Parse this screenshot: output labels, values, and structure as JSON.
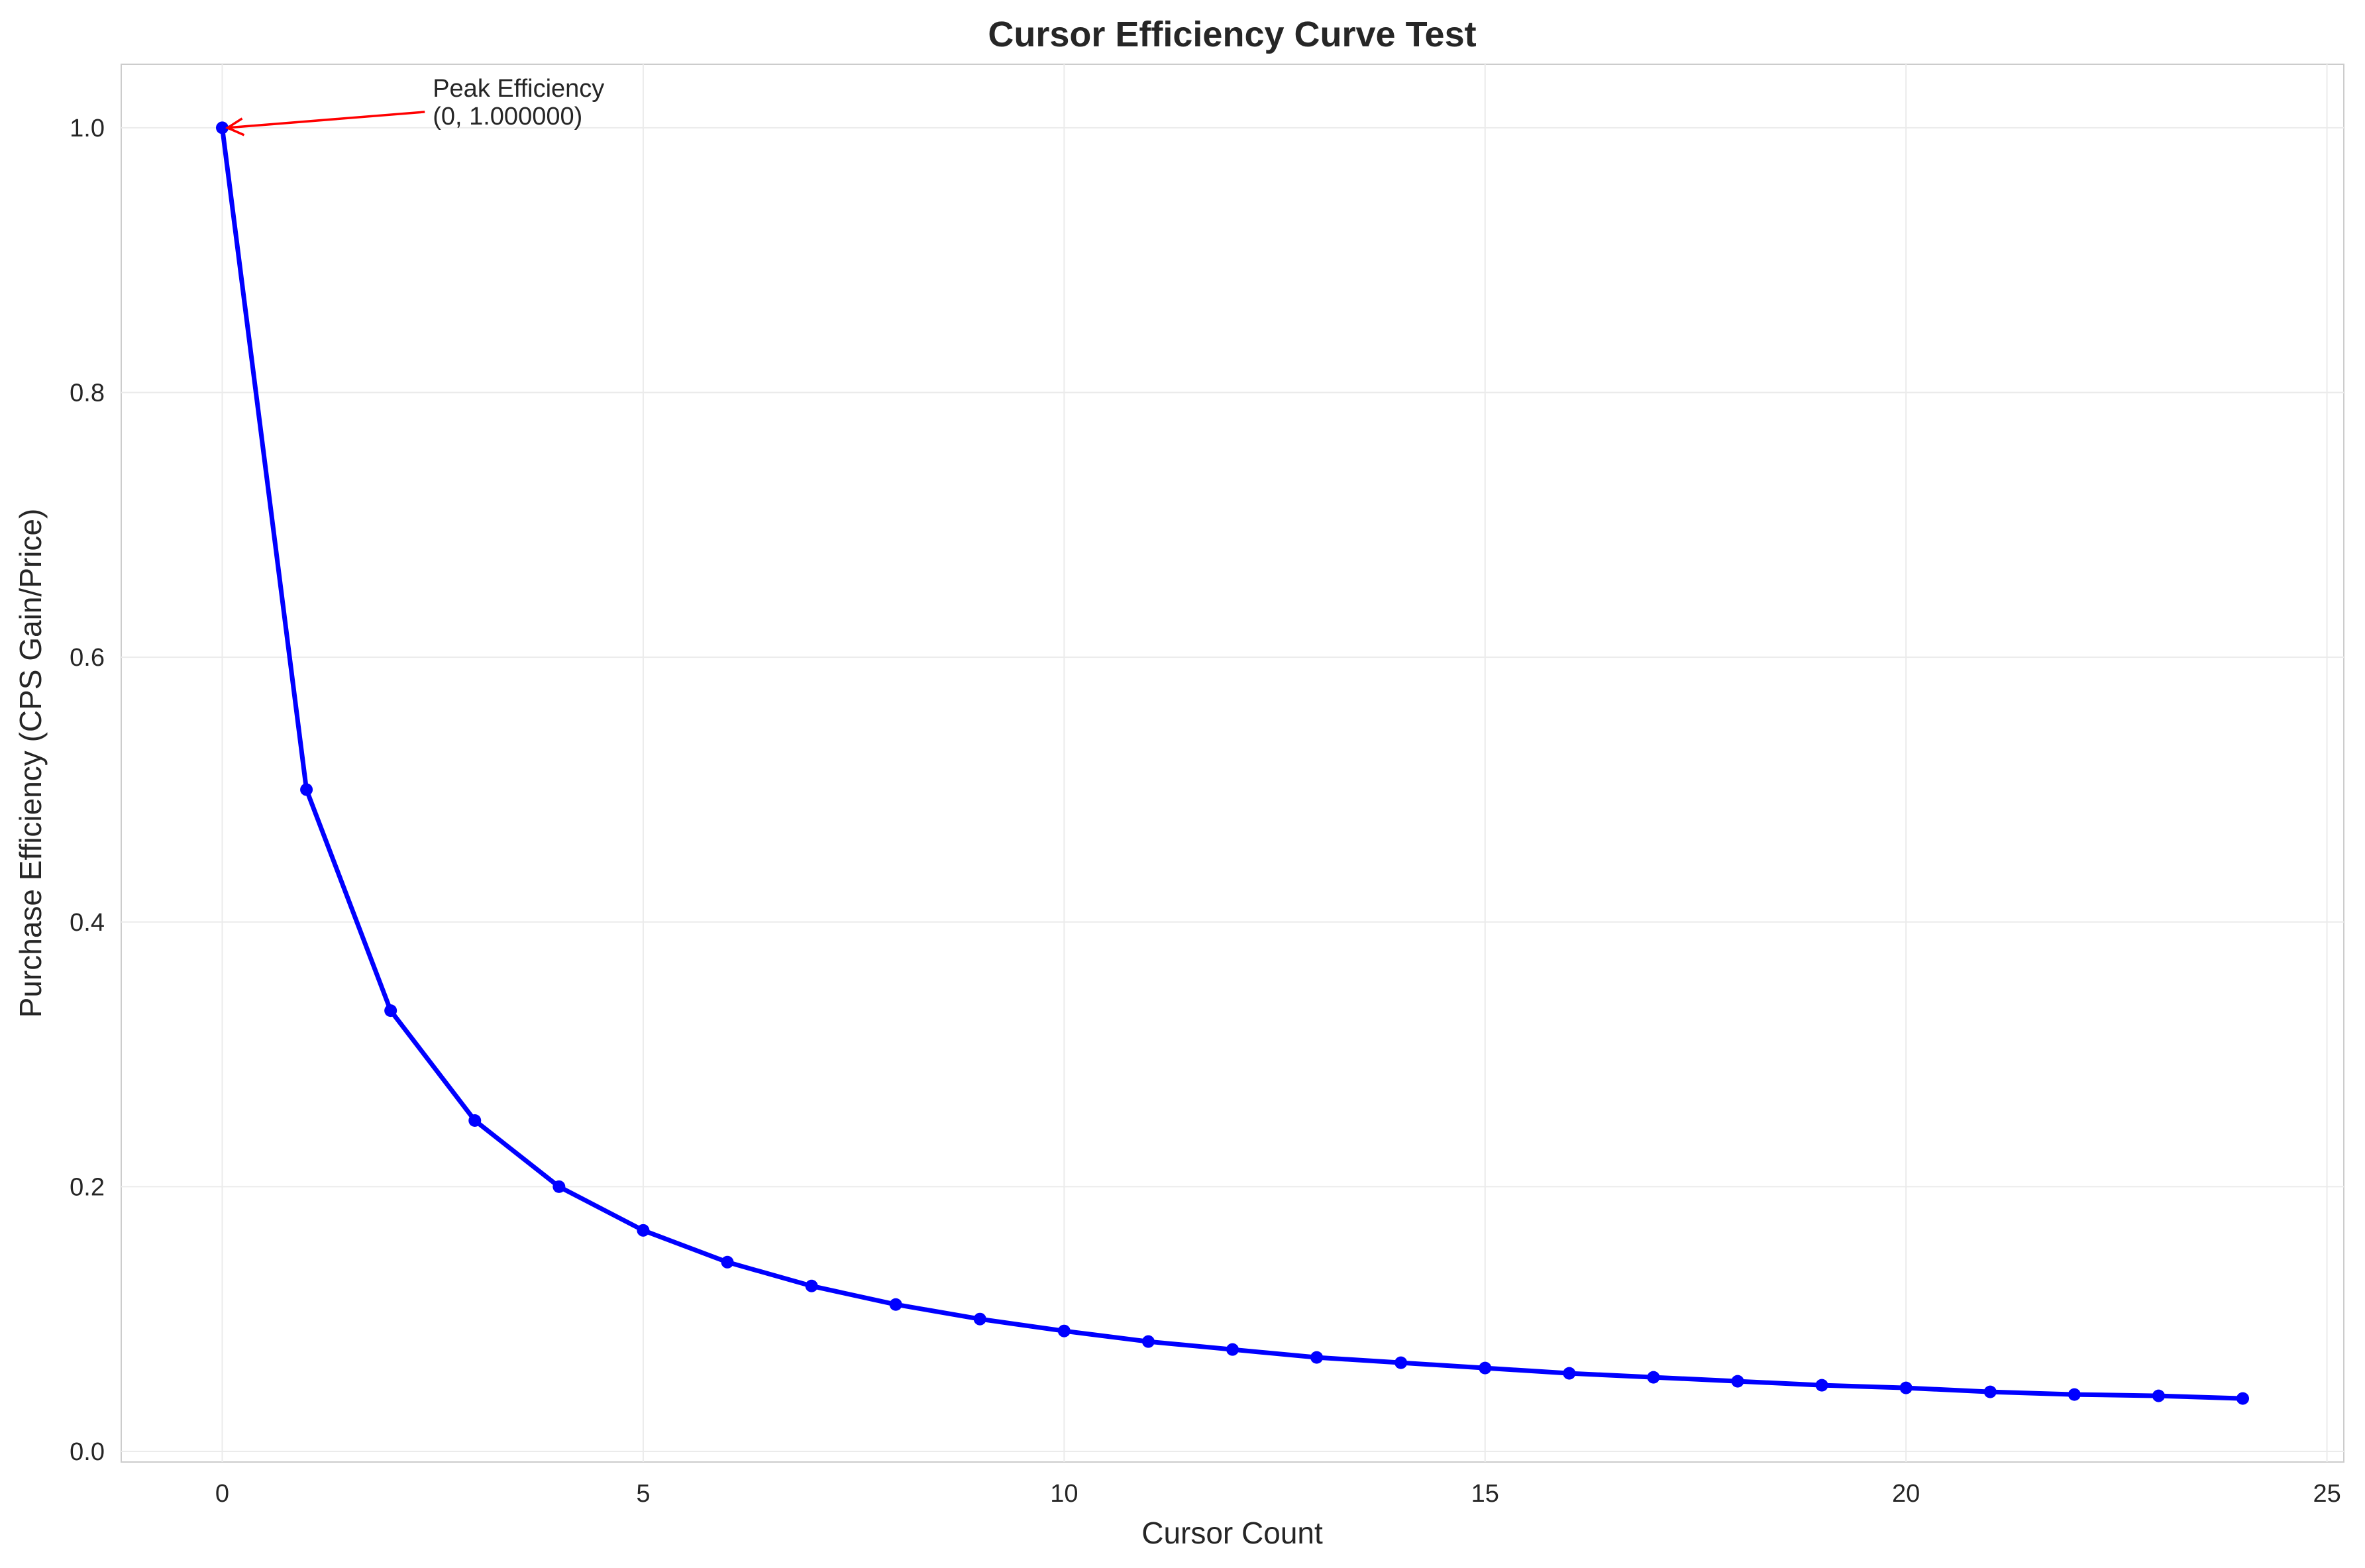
{
  "chart_data": {
    "type": "line",
    "title": "Cursor Efficiency Curve Test",
    "xlabel": "Cursor Count",
    "ylabel": "Purchase Efficiency (CPS Gain/Price)",
    "xlim": [
      -1.2,
      25.2
    ],
    "ylim": [
      -0.008,
      1.048
    ],
    "xticks": [
      0,
      5,
      10,
      15,
      20,
      25
    ],
    "yticks": [
      0.0,
      0.2,
      0.4,
      0.6,
      0.8,
      1.0
    ],
    "xtick_labels": [
      "0",
      "5",
      "10",
      "15",
      "20",
      "25"
    ],
    "ytick_labels": [
      "0.0",
      "0.2",
      "0.4",
      "0.6",
      "0.8",
      "1.0"
    ],
    "grid": true,
    "legend": "none",
    "series": [
      {
        "color": "#0000ff",
        "marker": "circle",
        "x": [
          0,
          1,
          2,
          3,
          4,
          5,
          6,
          7,
          8,
          9,
          10,
          11,
          12,
          13,
          14,
          15,
          16,
          17,
          18,
          19,
          20,
          21,
          22,
          23,
          24
        ],
        "y": [
          1.0,
          0.5,
          0.333,
          0.25,
          0.2,
          0.167,
          0.143,
          0.125,
          0.111,
          0.1,
          0.091,
          0.083,
          0.077,
          0.071,
          0.067,
          0.063,
          0.059,
          0.056,
          0.053,
          0.05,
          0.048,
          0.045,
          0.043,
          0.042,
          0.04
        ]
      }
    ],
    "annotation": {
      "line1": "Peak Efficiency",
      "line2": "(0, 1.000000)",
      "point": [
        0,
        1.0
      ],
      "text_pos": [
        2.5,
        1.0
      ],
      "color": "#ff0000"
    }
  }
}
